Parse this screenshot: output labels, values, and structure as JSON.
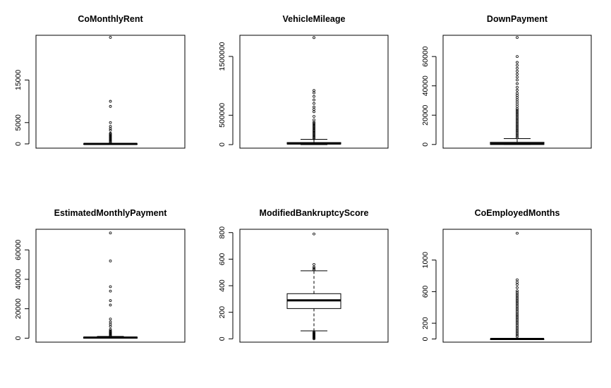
{
  "chart_data": [
    {
      "type": "boxplot",
      "title": "CoMonthlyRent",
      "ylim": [
        -1000,
        25500
      ],
      "ticks": [
        0,
        5000,
        15000
      ],
      "tick_labels": [
        "0",
        "5000",
        "15000"
      ],
      "box": {
        "q1": 0,
        "median": 0,
        "q3": 0,
        "whisker_low": 0,
        "whisker_high": 0
      },
      "outliers": [
        300,
        500,
        700,
        900,
        1100,
        1300,
        1500,
        1700,
        1900,
        2100,
        2300,
        2500,
        3200,
        3600,
        4100,
        5000,
        8800,
        10000,
        25000
      ]
    },
    {
      "type": "boxplot",
      "title": "VehicleMileage",
      "ylim": [
        -60000,
        1860000
      ],
      "ticks": [
        0,
        500000,
        1500000
      ],
      "tick_labels": [
        "0",
        "500000",
        "1500000"
      ],
      "box": {
        "q1": 10000,
        "median": 20000,
        "q3": 35000,
        "whisker_low": 0,
        "whisker_high": 90000
      },
      "outliers": [
        100000,
        120000,
        140000,
        160000,
        180000,
        200000,
        220000,
        240000,
        260000,
        280000,
        300000,
        320000,
        340000,
        360000,
        380000,
        420000,
        480000,
        560000,
        600000,
        640000,
        700000,
        760000,
        820000,
        880000,
        920000,
        1820000
      ]
    },
    {
      "type": "boxplot",
      "title": "DownPayment",
      "ylim": [
        -2500,
        74500
      ],
      "ticks": [
        0,
        20000,
        40000,
        60000
      ],
      "tick_labels": [
        "0",
        "20000",
        "40000",
        "60000"
      ],
      "box": {
        "q1": 0,
        "median": 500,
        "q3": 1500,
        "whisker_low": 0,
        "whisker_high": 4000
      },
      "outliers": [
        4500,
        5500,
        6500,
        7500,
        8500,
        9500,
        10500,
        11500,
        12500,
        13500,
        14500,
        15500,
        16500,
        17500,
        18500,
        19500,
        20500,
        21500,
        22500,
        23500,
        24500,
        26000,
        27500,
        29000,
        30500,
        32000,
        33500,
        35000,
        37000,
        39000,
        41500,
        44000,
        46000,
        48000,
        50000,
        52000,
        54000,
        56000,
        60000,
        73000
      ]
    },
    {
      "type": "boxplot",
      "title": "EstimatedMonthlyPayment",
      "ylim": [
        -2700,
        74000
      ],
      "ticks": [
        0,
        20000,
        40000,
        60000
      ],
      "tick_labels": [
        "0",
        "20000",
        "40000",
        "60000"
      ],
      "box": {
        "q1": 0,
        "median": 400,
        "q3": 700,
        "whisker_low": 0,
        "whisker_high": 1200
      },
      "outliers": [
        1500,
        2000,
        2500,
        3000,
        3500,
        4000,
        4500,
        5000,
        6000,
        8000,
        9500,
        11000,
        13000,
        22500,
        25500,
        32000,
        35000,
        52500,
        71500
      ]
    },
    {
      "type": "boxplot",
      "title": "ModifiedBankruptcyScore",
      "ylim": [
        -25,
        825
      ],
      "ticks": [
        0,
        200,
        400,
        600,
        800
      ],
      "tick_labels": [
        "0",
        "200",
        "400",
        "600",
        "800"
      ],
      "box": {
        "q1": 228,
        "median": 290,
        "q3": 340,
        "whisker_low": 60,
        "whisker_high": 512
      },
      "outliers": [
        0,
        5,
        10,
        15,
        20,
        25,
        30,
        35,
        40,
        45,
        50,
        520,
        530,
        540,
        560,
        790
      ]
    },
    {
      "type": "boxplot",
      "title": "CoEmployedMonths",
      "ylim": [
        -40,
        1390
      ],
      "ticks": [
        0,
        200,
        600,
        1000
      ],
      "tick_labels": [
        "0",
        "200",
        "600",
        "1000"
      ],
      "box": {
        "q1": 0,
        "median": 0,
        "q3": 0,
        "whisker_low": 0,
        "whisker_high": 0
      },
      "outliers": [
        30,
        50,
        70,
        90,
        110,
        130,
        150,
        170,
        190,
        210,
        230,
        250,
        270,
        290,
        310,
        330,
        350,
        370,
        390,
        410,
        430,
        450,
        470,
        490,
        510,
        530,
        550,
        570,
        590,
        610,
        650,
        690,
        720,
        750,
        1340
      ]
    }
  ]
}
